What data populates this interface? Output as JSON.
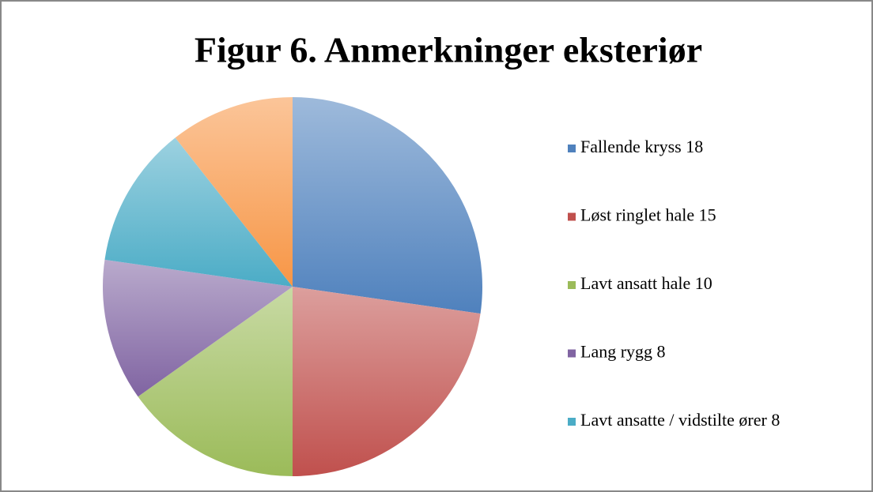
{
  "chart_data": {
    "type": "pie",
    "title": "Figur 6. Anmerkninger eksteriør",
    "categories": [
      "Fallende kryss 18",
      "Løst ringlet hale 15",
      "Lavt ansatt hale 10",
      "Lang rygg 8",
      "Lavt ansatte / vidstilte ører 8",
      null
    ],
    "values": [
      18,
      15,
      10,
      8,
      8,
      7
    ],
    "colors": [
      "#4f81bd",
      "#c0504d",
      "#9bbb59",
      "#8064a2",
      "#4bacc6",
      "#f79646"
    ],
    "legend": "right"
  }
}
